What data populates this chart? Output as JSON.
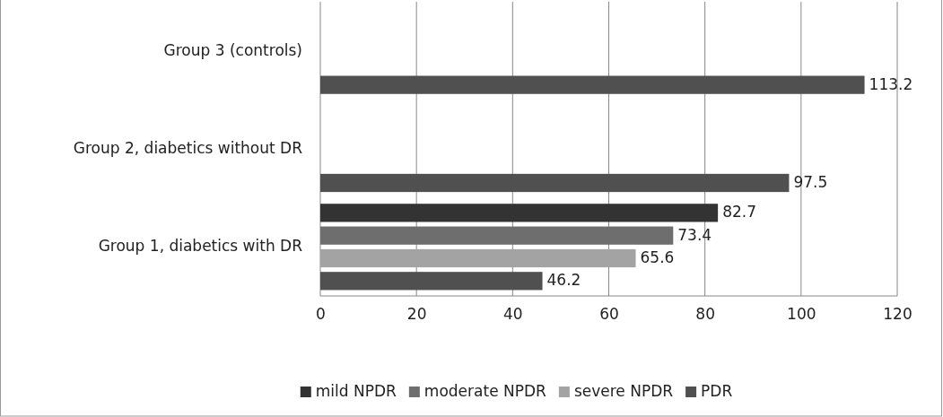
{
  "chart_data": {
    "type": "bar",
    "orientation": "horizontal",
    "categories": [
      "Group 3 (controls)",
      "Group 2, diabetics without DR",
      "Group 1, diabetics with DR"
    ],
    "series": [
      {
        "name": "mild NPDR",
        "color": "#333333",
        "values": [
          null,
          null,
          82.7
        ]
      },
      {
        "name": "moderate NPDR",
        "color": "#6e6e6e",
        "values": [
          null,
          null,
          73.4
        ]
      },
      {
        "name": "severe NPDR",
        "color": "#a3a3a3",
        "values": [
          null,
          null,
          65.6
        ]
      },
      {
        "name": "PDR",
        "color": "#505050",
        "values": [
          113.2,
          97.5,
          46.2
        ]
      }
    ],
    "xlim": [
      0,
      120
    ],
    "xticks": [
      0,
      20,
      40,
      60,
      80,
      100,
      120
    ],
    "grid": "x",
    "data_labels": true,
    "legend": "bottom"
  }
}
